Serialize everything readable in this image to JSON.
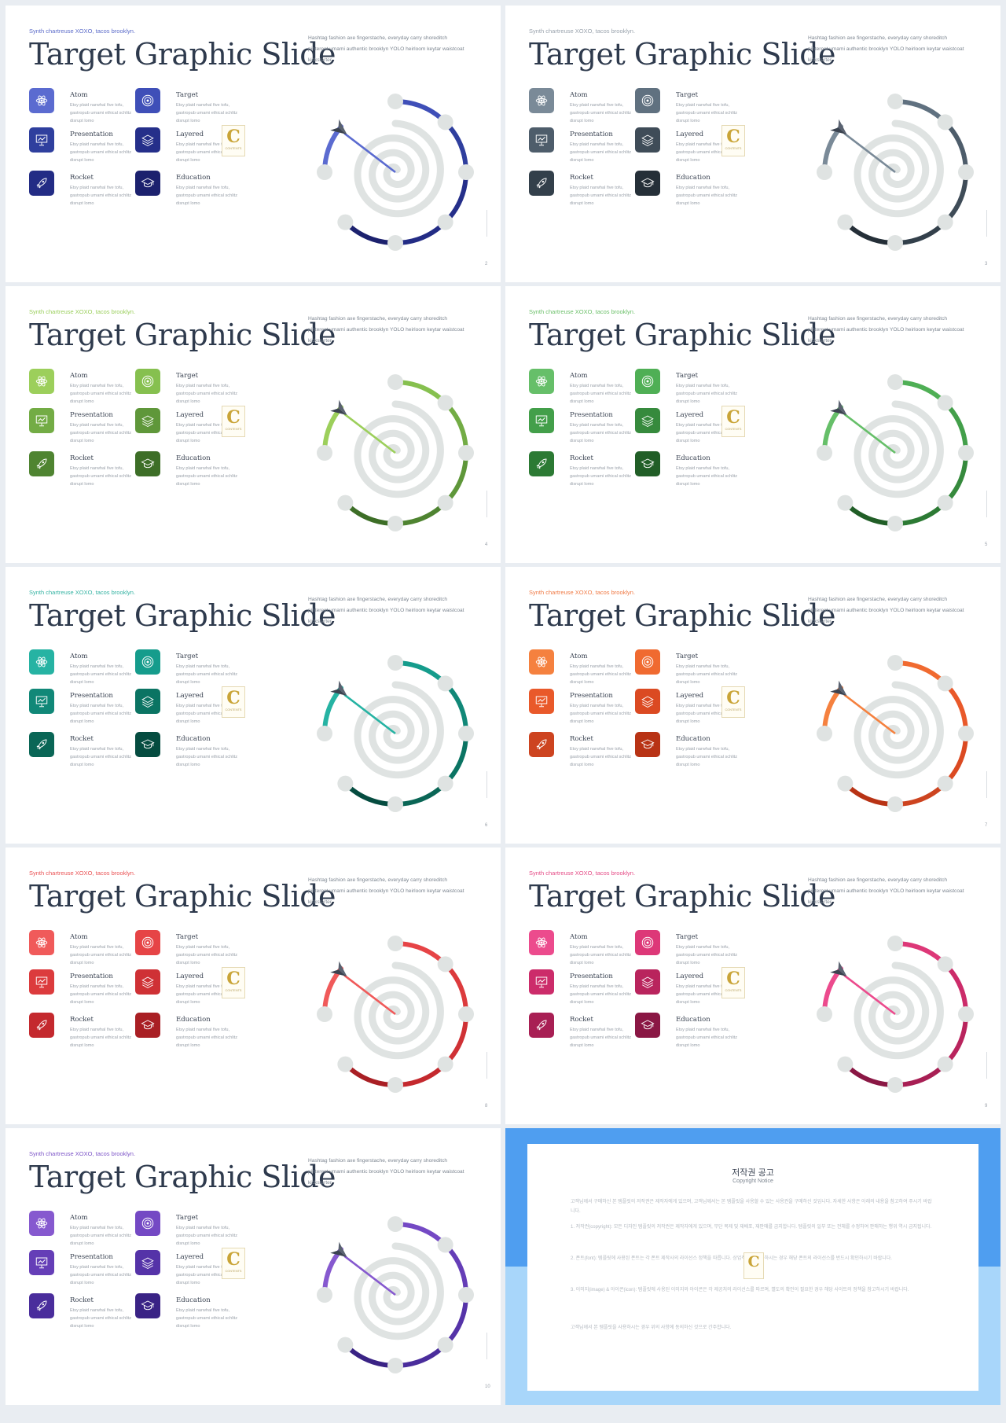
{
  "kicker": "Synth chartreuse XOXO, tacos brooklyn.",
  "title": "Target Graphic Slide",
  "description": "Hashtag fashion axe fingerstache, everyday carry shoreditch pinterest umami authentic brooklyn YOLO heirloom keytar waistcoat kickstarter",
  "item_text": "Etsy plaid narwhal five tofu, gastropub umami ethical schlitz disrupt lomo",
  "items": [
    {
      "label": "Atom",
      "icon": "atom-icon"
    },
    {
      "label": "Target",
      "icon": "target-icon"
    },
    {
      "label": "Presentation",
      "icon": "presentation-icon"
    },
    {
      "label": "Layered",
      "icon": "layers-icon"
    },
    {
      "label": "Rocket",
      "icon": "rocket-icon"
    },
    {
      "label": "Education",
      "icon": "graduation-cap-icon"
    }
  ],
  "watermark": {
    "letter": "C",
    "text": "CONTENTS"
  },
  "slides": [
    {
      "page": "2",
      "kicker_color": "#5b6bc9",
      "colors": [
        "#5b6bd0",
        "#3f4fb8",
        "#2f3f9e",
        "#252f8a",
        "#232c85",
        "#1c216e"
      ]
    },
    {
      "page": "3",
      "kicker_color": "#9aa3ad",
      "colors": [
        "#7a8a98",
        "#607180",
        "#4e5d6b",
        "#3f4c58",
        "#33404b",
        "#252f38"
      ]
    },
    {
      "page": "4",
      "kicker_color": "#9bcf5d",
      "colors": [
        "#9ccf5b",
        "#86c04f",
        "#73ac45",
        "#5f973a",
        "#4f8431",
        "#3d6e27"
      ]
    },
    {
      "page": "5",
      "kicker_color": "#6cc06a",
      "colors": [
        "#66bf69",
        "#4faf55",
        "#439f4a",
        "#368a3d",
        "#2c7a34",
        "#215e27"
      ]
    },
    {
      "page": "6",
      "kicker_color": "#35b3a3",
      "colors": [
        "#26b3a3",
        "#159c8c",
        "#118878",
        "#0b7463",
        "#0a6656",
        "#054c40"
      ]
    },
    {
      "page": "7",
      "kicker_color": "#f07a45",
      "colors": [
        "#f5813f",
        "#f06a30",
        "#e9592a",
        "#db4a22",
        "#cd4420",
        "#b83315"
      ]
    },
    {
      "page": "8",
      "kicker_color": "#ea5254",
      "colors": [
        "#f05a5a",
        "#e64446",
        "#dc3b3d",
        "#cf3135",
        "#c4292e",
        "#a91f24"
      ]
    },
    {
      "page": "9",
      "kicker_color": "#e54b86",
      "colors": [
        "#ec4b8d",
        "#dd3878",
        "#cc2c6a",
        "#b9245d",
        "#a81f54",
        "#8a1744"
      ]
    },
    {
      "page": "10",
      "kicker_color": "#7d55c8",
      "colors": [
        "#8659cf",
        "#7449c4",
        "#653eb7",
        "#5533a8",
        "#4a2d9c",
        "#3a2385"
      ]
    }
  ],
  "notice": {
    "title": "저작권 공고",
    "subtitle": "Copyright Notice",
    "paragraphs": [
      "고객님께서 구매하신 본 템플릿의 저작권은 제작자에게 있으며, 고객님께서는 본 템플릿을 사용할 수 있는 사용권을 구매하신 것입니다. 자세한 사항은 아래의 내용을 참고하여 주시기 바랍니다.",
      "1. 저작권(copyright): 모든 디자인 템플릿의 저작권은 제작자에게 있으며, 무단 복제 및 재배포, 재판매를 금지합니다. 템플릿의 일부 또는 전체를 수정하여 판매하는 행위 역시 금지됩니다.",
      "2. 폰트(font): 템플릿에 사용된 폰트는 각 폰트 제작사의 라이선스 정책을 따릅니다. 상업적으로 사용하시는 경우 해당 폰트의 라이선스를 반드시 확인하시기 바랍니다.",
      "3. 이미지(image) & 아이콘(icon): 템플릿에 사용된 이미지와 아이콘은 각 제공처의 라이선스를 따르며, 별도의 확인이 필요한 경우 해당 사이트의 정책을 참고하시기 바랍니다.",
      "고객님께서 본 템플릿을 사용하시는 경우 위의 사항에 동의하신 것으로 간주합니다."
    ]
  }
}
